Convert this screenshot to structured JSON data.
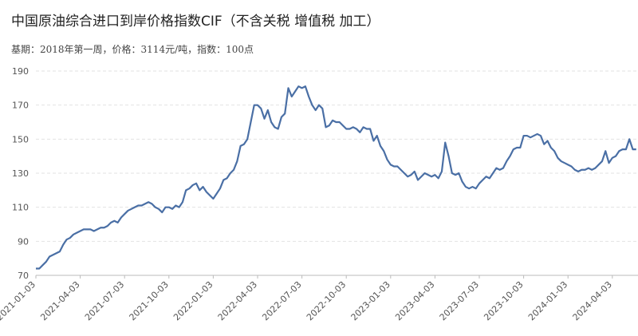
{
  "chart_data": {
    "type": "line",
    "title": "中国原油综合进口到岸价格指数CIF（不含关税 增值税 加工）",
    "subtitle": "基期：2018年第一周，价格：3114元/吨，指数：100点",
    "categories": [
      "2021-01-03",
      null,
      null,
      null,
      null,
      null,
      null,
      null,
      null,
      null,
      null,
      null,
      null,
      "2021-04-03",
      null,
      null,
      null,
      null,
      null,
      null,
      null,
      null,
      null,
      null,
      null,
      null,
      "2021-07-03",
      null,
      null,
      null,
      null,
      null,
      null,
      null,
      null,
      null,
      null,
      null,
      null,
      "2021-10-03",
      null,
      null,
      null,
      null,
      null,
      null,
      null,
      null,
      null,
      null,
      null,
      null,
      "2022-01-03",
      null,
      null,
      null,
      null,
      null,
      null,
      null,
      null,
      null,
      null,
      null,
      null,
      "2022-04-03",
      null,
      null,
      null,
      null,
      null,
      null,
      null,
      null,
      null,
      null,
      null,
      null,
      "2022-07-03",
      null,
      null,
      null,
      null,
      null,
      null,
      null,
      null,
      null,
      null,
      null,
      null,
      "2022-10-03",
      null,
      null,
      null,
      null,
      null,
      null,
      null,
      null,
      null,
      null,
      null,
      null,
      "2023-01-03",
      null,
      null,
      null,
      null,
      null,
      null,
      null,
      null,
      null,
      null,
      null,
      null,
      "2023-04-03",
      null,
      null,
      null,
      null,
      null,
      null,
      null,
      null,
      null,
      null,
      null,
      null,
      "2023-07-03",
      null,
      null,
      null,
      null,
      null,
      null,
      null,
      null,
      null,
      null,
      null,
      null,
      "2023-10-03",
      null,
      null,
      null,
      null,
      null,
      null,
      null,
      null,
      null,
      null,
      null,
      null,
      "2024-01-03",
      null,
      null,
      null,
      null,
      null,
      null,
      null,
      null,
      null,
      null,
      null,
      null,
      "2024-04-03",
      null,
      null,
      null,
      null,
      null,
      null,
      null
    ],
    "series": [
      {
        "color": "#4a6fa5",
        "values": [
          74,
          74,
          76,
          78,
          81,
          82,
          83,
          84,
          88,
          91,
          92,
          94,
          95,
          96,
          97,
          97,
          97,
          96,
          97,
          98,
          98,
          99,
          101,
          102,
          101,
          104,
          106,
          108,
          109,
          110,
          111,
          111,
          112,
          113,
          112,
          110,
          109,
          107,
          110,
          110,
          109,
          111,
          110,
          113,
          120,
          121,
          123,
          124,
          120,
          122,
          119,
          117,
          115,
          118,
          121,
          126,
          127,
          130,
          132,
          137,
          146,
          147,
          150,
          160,
          170,
          170,
          168,
          162,
          167,
          160,
          157,
          156,
          163,
          165,
          180,
          175,
          178,
          181,
          180,
          181,
          175,
          170,
          167,
          170,
          168,
          157,
          158,
          161,
          160,
          160,
          158,
          156,
          156,
          157,
          156,
          154,
          157,
          156,
          156,
          149,
          152,
          146,
          143,
          138,
          135,
          134,
          134,
          132,
          130,
          128,
          129,
          131,
          126,
          128,
          130,
          129,
          128,
          129,
          127,
          131,
          148,
          140,
          130,
          129,
          130,
          125,
          122,
          121,
          122,
          121,
          124,
          126,
          128,
          127,
          130,
          133,
          132,
          133,
          137,
          140,
          144,
          145,
          145,
          152,
          152,
          151,
          152,
          153,
          152,
          147,
          149,
          145,
          143,
          139,
          137,
          136,
          135,
          134,
          132,
          131,
          132,
          132,
          133,
          132,
          133,
          135,
          137,
          143,
          136,
          139,
          140,
          143,
          144,
          144,
          150,
          144,
          144
        ]
      }
    ],
    "ylim": [
      70,
      190
    ],
    "yticks": [
      70,
      90,
      110,
      130,
      150,
      170,
      190
    ],
    "grid": true
  }
}
